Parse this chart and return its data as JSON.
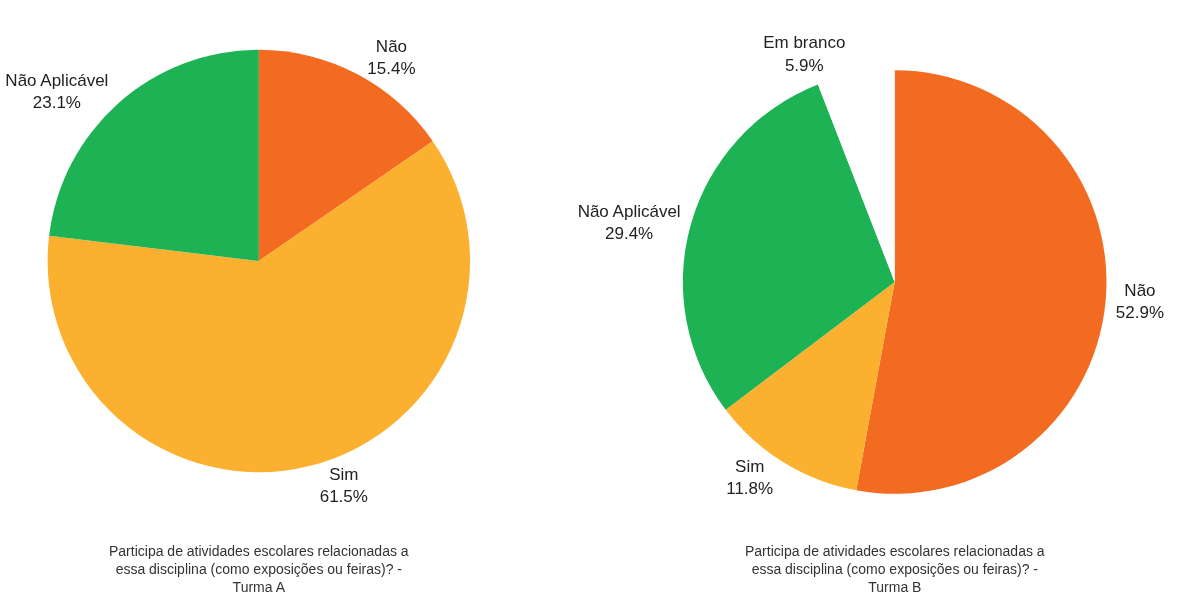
{
  "chart_data": [
    {
      "type": "pie",
      "title": "Participa de atividades escolares relacionadas a essa disciplina (como exposições ou feiras)? - Turma A",
      "categories": [
        "Não",
        "Sim",
        "Não Aplicável"
      ],
      "values": [
        15.4,
        61.5,
        23.1
      ],
      "value_labels": [
        "15.4%",
        "61.5%",
        "23.1%"
      ],
      "colors": [
        "#f26b21",
        "#fbb12f",
        "#1db254"
      ],
      "legend": false
    },
    {
      "type": "pie",
      "title": "Participa de atividades escolares relacionadas a essa disciplina (como exposições ou feiras)? - Turma B",
      "categories": [
        "Não",
        "Sim",
        "Não Aplicável",
        "Em branco"
      ],
      "values": [
        52.9,
        11.8,
        29.4,
        5.9
      ],
      "value_labels": [
        "52.9%",
        "11.8%",
        "29.4%",
        "5.9%"
      ],
      "colors": [
        "#f26b21",
        "#fbb12f",
        "#1db254",
        "#ffffff"
      ],
      "legend": false
    }
  ]
}
